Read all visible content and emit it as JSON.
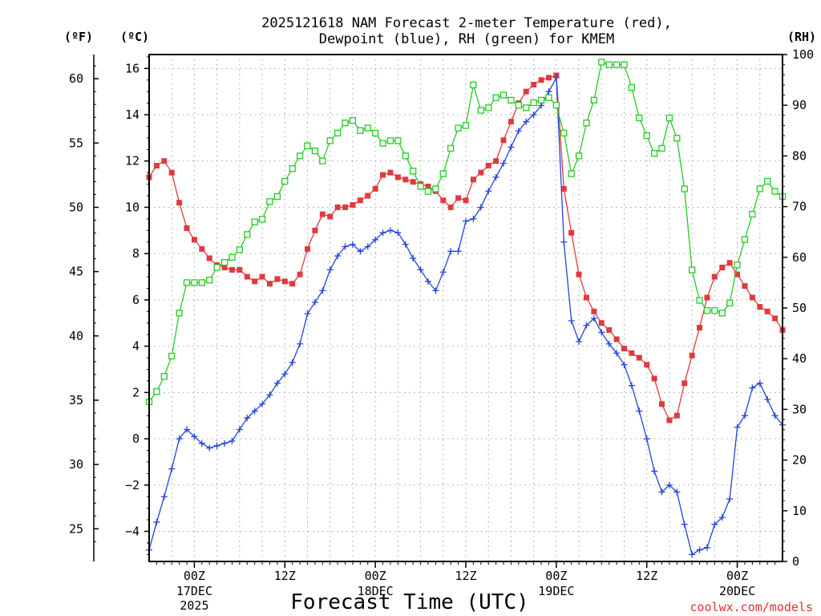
{
  "title": {
    "line1": "2025121618 NAM Forecast 2-meter Temperature (red),",
    "line2": "Dewpoint (blue), RH (green) for KMEM"
  },
  "units": {
    "fahrenheit": "(ºF)",
    "celsius": "(ºC)",
    "rh": "(RH)"
  },
  "xlabel": "Forecast Time (UTC)",
  "credit": "coolwx.com/models",
  "colors": {
    "temperature": "#e03a3e",
    "dewpoint": "#2244dd",
    "rh": "#22cc22",
    "grid": "#a0a0a0"
  },
  "chart_data": {
    "type": "line",
    "x_unit": "forecast hours from 2025-12-16 18Z",
    "x": [
      0,
      1,
      2,
      3,
      4,
      5,
      6,
      7,
      8,
      9,
      10,
      11,
      12,
      13,
      14,
      15,
      16,
      17,
      18,
      19,
      20,
      21,
      22,
      23,
      24,
      25,
      26,
      27,
      28,
      29,
      30,
      31,
      32,
      33,
      34,
      35,
      36,
      37,
      38,
      39,
      40,
      41,
      42,
      43,
      44,
      45,
      46,
      47,
      48,
      49,
      50,
      51,
      52,
      53,
      54,
      55,
      56,
      57,
      58,
      59,
      60,
      61,
      62,
      63,
      64,
      65,
      66,
      67,
      68,
      69,
      70,
      71,
      72,
      73,
      74,
      75,
      76,
      77,
      78,
      79,
      80,
      81,
      82,
      83,
      84
    ],
    "xlim": [
      0,
      84
    ],
    "x_ticks": [
      {
        "hour": 6,
        "label": "00Z",
        "sub": [
          "17DEC",
          "2025"
        ]
      },
      {
        "hour": 18,
        "label": "12Z",
        "sub": []
      },
      {
        "hour": 30,
        "label": "00Z",
        "sub": [
          "18DEC"
        ]
      },
      {
        "hour": 42,
        "label": "12Z",
        "sub": []
      },
      {
        "hour": 54,
        "label": "00Z",
        "sub": [
          "19DEC"
        ]
      },
      {
        "hour": 66,
        "label": "12Z",
        "sub": []
      },
      {
        "hour": 78,
        "label": "00Z",
        "sub": [
          "20DEC"
        ]
      }
    ],
    "y_celsius": {
      "lim": [
        -5.3,
        16.6
      ],
      "ticks": [
        -4,
        -2,
        0,
        2,
        4,
        6,
        8,
        10,
        12,
        14,
        16
      ],
      "labels": [
        "−4",
        "−2",
        "0",
        "2",
        "4",
        "6",
        "8",
        "10",
        "12",
        "14",
        "16"
      ]
    },
    "y_fahrenheit": {
      "ticks": [
        25,
        30,
        35,
        40,
        45,
        50,
        55,
        60
      ],
      "labels": [
        "25",
        "30",
        "35",
        "40",
        "45",
        "50",
        "55",
        "60"
      ]
    },
    "y_rh": {
      "lim": [
        0,
        100
      ],
      "ticks": [
        0,
        10,
        20,
        30,
        40,
        50,
        60,
        70,
        80,
        90,
        100
      ],
      "labels": [
        "0",
        "10",
        "20",
        "30",
        "40",
        "50",
        "60",
        "70",
        "80",
        "90",
        "100"
      ]
    },
    "series": [
      {
        "name": "Temperature",
        "units": "C",
        "axis": "celsius",
        "marker": "filled-square",
        "color": "#e03a3e",
        "values": [
          11.3,
          11.8,
          12.0,
          11.5,
          10.2,
          9.1,
          8.6,
          8.2,
          7.8,
          7.5,
          7.4,
          7.3,
          7.3,
          7.0,
          6.8,
          7.0,
          6.7,
          6.9,
          6.8,
          6.7,
          7.1,
          8.2,
          9.0,
          9.7,
          9.6,
          10.0,
          10.0,
          10.1,
          10.3,
          10.5,
          10.8,
          11.4,
          11.5,
          11.3,
          11.2,
          11.1,
          11.0,
          10.9,
          10.7,
          10.3,
          10.0,
          10.4,
          10.3,
          11.2,
          11.5,
          11.8,
          12.0,
          12.9,
          13.7,
          14.5,
          15.0,
          15.3,
          15.5,
          15.6,
          15.7,
          10.8,
          8.9,
          7.1,
          6.1,
          5.5,
          5.0,
          4.7,
          4.3,
          3.9,
          3.7,
          3.5,
          3.2,
          2.6,
          1.5,
          0.8,
          1.0,
          2.4,
          3.6,
          4.8,
          6.1,
          7.0,
          7.4,
          7.6,
          7.1,
          6.6,
          6.1,
          5.7,
          5.5,
          5.2,
          4.7
        ]
      },
      {
        "name": "Dewpoint",
        "units": "C",
        "axis": "celsius",
        "marker": "plus",
        "color": "#2244dd",
        "values": [
          -4.8,
          -3.6,
          -2.5,
          -1.3,
          0.0,
          0.4,
          0.1,
          -0.2,
          -0.4,
          -0.3,
          -0.2,
          -0.1,
          0.4,
          0.9,
          1.2,
          1.5,
          1.9,
          2.4,
          2.8,
          3.3,
          4.1,
          5.4,
          5.9,
          6.4,
          7.3,
          7.9,
          8.3,
          8.4,
          8.1,
          8.3,
          8.6,
          8.9,
          9.0,
          8.9,
          8.4,
          7.8,
          7.3,
          6.8,
          6.4,
          7.2,
          8.1,
          8.1,
          9.4,
          9.5,
          10.0,
          10.7,
          11.3,
          11.9,
          12.6,
          13.3,
          13.7,
          14.0,
          14.4,
          15.0,
          15.6,
          8.5,
          5.1,
          4.2,
          4.9,
          5.2,
          4.6,
          4.1,
          3.7,
          3.2,
          2.3,
          1.2,
          -0.0,
          -1.4,
          -2.3,
          -2.0,
          -2.3,
          -3.7,
          -5.0,
          -4.8,
          -4.7,
          -3.7,
          -3.4,
          -2.6,
          0.5,
          1.0,
          2.2,
          2.4,
          1.7,
          1.0,
          0.6
        ]
      },
      {
        "name": "RH",
        "units": "%",
        "axis": "rh",
        "marker": "open-square",
        "color": "#22cc22",
        "values": [
          31.5,
          33.5,
          36.5,
          40.5,
          49.0,
          55.0,
          55.0,
          55.0,
          55.5,
          58.0,
          59.0,
          60.0,
          61.5,
          64.5,
          67.0,
          67.5,
          71.0,
          72.0,
          75.0,
          77.5,
          80.0,
          82.0,
          81.0,
          79.0,
          83.0,
          84.5,
          86.5,
          87.0,
          85.0,
          85.5,
          84.5,
          82.5,
          83.0,
          83.0,
          80.0,
          77.0,
          74.0,
          73.0,
          73.5,
          76.5,
          81.5,
          85.5,
          86.0,
          94.0,
          89.0,
          89.5,
          91.5,
          92.0,
          91.0,
          90.0,
          89.5,
          90.5,
          91.0,
          91.5,
          90.0,
          84.5,
          76.5,
          80.0,
          86.5,
          91.0,
          98.5,
          98.0,
          98.0,
          98.0,
          93.5,
          87.5,
          84.0,
          80.5,
          81.5,
          87.5,
          83.5,
          73.5,
          57.5,
          51.5,
          49.5,
          49.5,
          49.0,
          51.0,
          58.5,
          63.5,
          68.5,
          73.5,
          75.0,
          73.0,
          72.0
        ]
      }
    ]
  }
}
